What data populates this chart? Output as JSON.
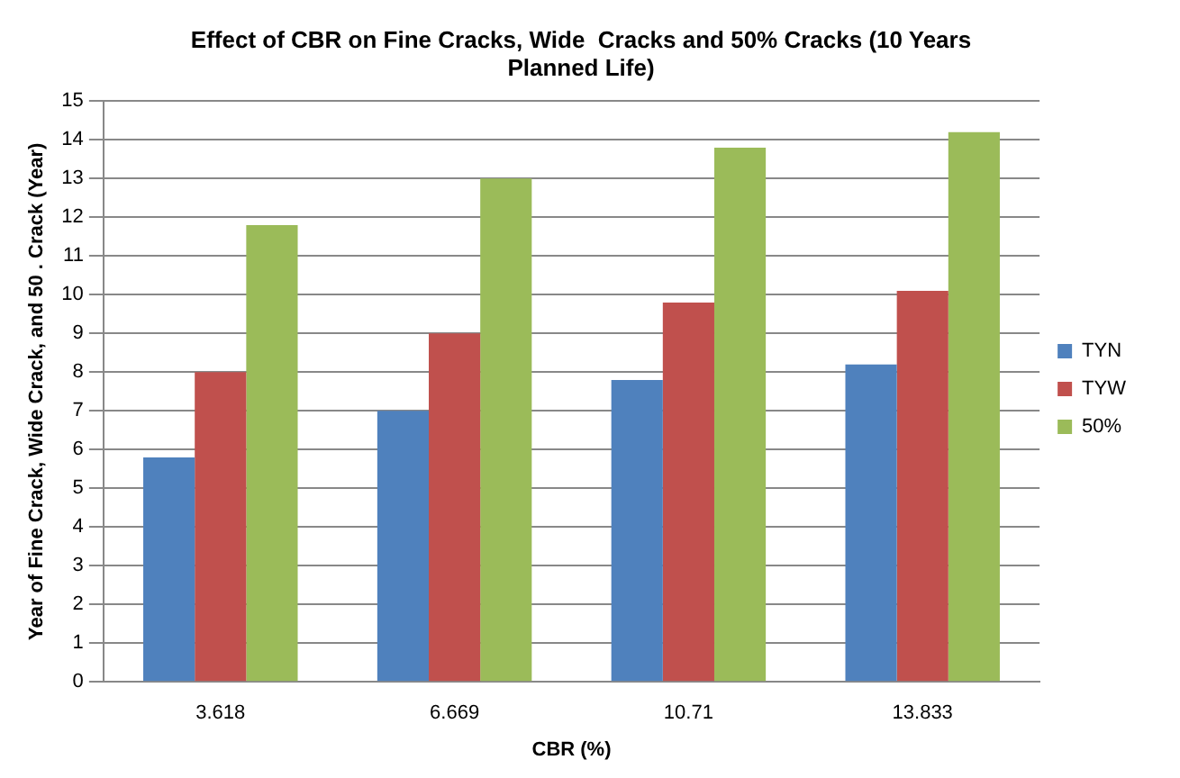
{
  "chart_data": {
    "type": "bar",
    "title": [
      "Effect of CBR on Fine Cracks, Wide  Cracks and 50% Cracks (10 Years",
      "Planned Life)"
    ],
    "xlabel": "CBR (%)",
    "ylabel": "Year of Fine Crack, Wide Crack, and 50 . Crack (Year)",
    "categories": [
      "3.618",
      "6.669",
      "10.71",
      "13.833"
    ],
    "series": [
      {
        "name": "TYN",
        "color": "#4f81bd",
        "values": [
          5.8,
          7.0,
          7.8,
          8.2
        ]
      },
      {
        "name": "TYW",
        "color": "#c0504d",
        "values": [
          8.0,
          9.0,
          9.8,
          10.1
        ]
      },
      {
        "name": "50%",
        "color": "#9bbb59",
        "values": [
          11.8,
          13.0,
          13.8,
          14.2
        ]
      }
    ],
    "ylim": [
      0,
      15
    ],
    "yticks": [
      0,
      1,
      2,
      3,
      4,
      5,
      6,
      7,
      8,
      9,
      10,
      11,
      12,
      13,
      14,
      15
    ],
    "grid": "y",
    "legend": "right"
  }
}
